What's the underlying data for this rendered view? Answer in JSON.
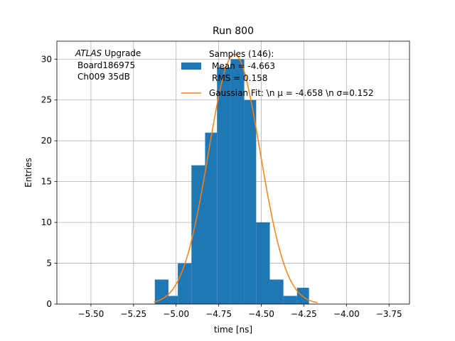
{
  "chart_data": {
    "type": "bar",
    "title": "Run 800",
    "xlabel": "time [ns]",
    "ylabel": "Entries",
    "xlim": [
      -5.7,
      -3.63
    ],
    "ylim": [
      0,
      32.2
    ],
    "grid": true,
    "annotation": [
      "ATLAS Upgrade",
      "Board186975",
      "Ch009 35dB"
    ],
    "x_ticks": [
      -5.5,
      -5.25,
      -5.0,
      -4.75,
      -4.5,
      -4.25,
      -4.0,
      -3.75
    ],
    "x_tick_labels": [
      "−5.50",
      "−5.25",
      "−5.00",
      "−4.75",
      "−4.50",
      "−4.25",
      "−4.00",
      "−3.75"
    ],
    "y_ticks": [
      0,
      5,
      10,
      15,
      20,
      25,
      30
    ],
    "y_tick_labels": [
      "0",
      "5",
      "10",
      "15",
      "20",
      "25",
      "30"
    ],
    "histogram": {
      "name_lines": [
        "Samples (146):",
        "Mean = -4.663",
        "RMS = 0.158"
      ],
      "color": "#1f77b4",
      "bins": [
        {
          "x0": -5.125,
          "x1": -5.045,
          "value": 3
        },
        {
          "x0": -5.045,
          "x1": -4.99,
          "value": 1
        },
        {
          "x0": -4.99,
          "x1": -4.91,
          "value": 5
        },
        {
          "x0": -4.91,
          "x1": -4.83,
          "value": 17
        },
        {
          "x0": -4.83,
          "x1": -4.76,
          "value": 21
        },
        {
          "x0": -4.76,
          "x1": -4.68,
          "value": 29
        },
        {
          "x0": -4.68,
          "x1": -4.6,
          "value": 30
        },
        {
          "x0": -4.6,
          "x1": -4.53,
          "value": 25
        },
        {
          "x0": -4.53,
          "x1": -4.45,
          "value": 10
        },
        {
          "x0": -4.45,
          "x1": -4.37,
          "value": 3
        },
        {
          "x0": -4.37,
          "x1": -4.29,
          "value": 1
        },
        {
          "x0": -4.29,
          "x1": -4.22,
          "value": 2
        }
      ]
    },
    "fit": {
      "name": "Gaussian Fit: \\n $\\mu$ = -4.658 \\n $\\sigma$=0.152",
      "name_display": "Gaussian Fit: \\n μ = -4.658 \\n σ=0.152",
      "color": "#ff7f0e",
      "mu": -4.658,
      "sigma": 0.152,
      "amplitude": 30.6,
      "x_range": [
        -5.13,
        -4.17
      ]
    },
    "legend_position": "top-right"
  }
}
